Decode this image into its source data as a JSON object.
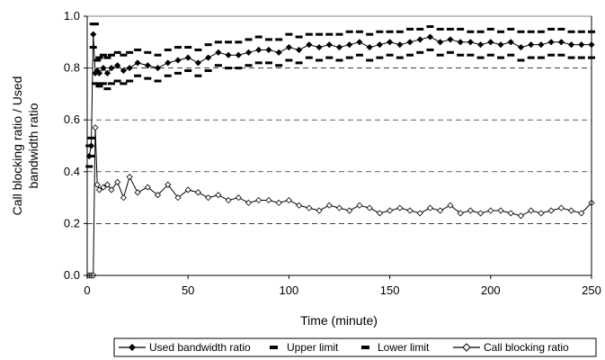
{
  "chart_data": {
    "type": "line",
    "xlabel": "Time (minute)",
    "ylabel_lines": [
      "Call blocking ratio / Used",
      "bandwidth ratio"
    ],
    "xlim": [
      0,
      250
    ],
    "ylim": [
      0,
      1.0
    ],
    "xticks": [
      0,
      50,
      100,
      150,
      200,
      250
    ],
    "yticks": [
      0.0,
      0.2,
      0.4,
      0.6,
      0.8,
      1.0
    ],
    "ytick_labels": [
      "0.0",
      "0.2",
      "0.4",
      "0.6",
      "0.8",
      "1.0"
    ],
    "grid": "horizontal dashed",
    "legend_position": "bottom",
    "x": [
      1,
      2,
      3,
      4,
      5,
      6,
      8,
      10,
      12,
      15,
      18,
      21,
      25,
      30,
      35,
      40,
      45,
      50,
      55,
      60,
      65,
      70,
      75,
      80,
      85,
      90,
      95,
      100,
      105,
      110,
      115,
      120,
      125,
      130,
      135,
      140,
      145,
      150,
      155,
      160,
      165,
      170,
      175,
      180,
      185,
      190,
      195,
      200,
      205,
      210,
      215,
      220,
      225,
      230,
      235,
      240,
      245,
      250
    ],
    "series": [
      {
        "name": "Used bandwidth ratio",
        "color": "#000000",
        "marker": "diamond-filled",
        "values": [
          0.46,
          0.5,
          0.93,
          0.78,
          0.79,
          0.78,
          0.8,
          0.78,
          0.8,
          0.81,
          0.79,
          0.8,
          0.82,
          0.81,
          0.8,
          0.82,
          0.83,
          0.84,
          0.82,
          0.84,
          0.86,
          0.85,
          0.85,
          0.86,
          0.87,
          0.87,
          0.86,
          0.88,
          0.87,
          0.89,
          0.88,
          0.89,
          0.88,
          0.89,
          0.9,
          0.88,
          0.89,
          0.9,
          0.89,
          0.9,
          0.91,
          0.92,
          0.9,
          0.91,
          0.9,
          0.9,
          0.89,
          0.9,
          0.89,
          0.9,
          0.88,
          0.89,
          0.89,
          0.9,
          0.9,
          0.89,
          0.89,
          0.89
        ]
      },
      {
        "name": "Upper limit",
        "color": "#000000",
        "marker": "dash",
        "values": [
          0.5,
          0.53,
          0.97,
          0.97,
          0.83,
          0.84,
          0.85,
          0.84,
          0.85,
          0.86,
          0.85,
          0.86,
          0.87,
          0.86,
          0.85,
          0.87,
          0.88,
          0.88,
          0.87,
          0.89,
          0.9,
          0.9,
          0.9,
          0.91,
          0.92,
          0.91,
          0.91,
          0.93,
          0.92,
          0.93,
          0.93,
          0.93,
          0.93,
          0.94,
          0.94,
          0.93,
          0.94,
          0.94,
          0.94,
          0.95,
          0.95,
          0.96,
          0.95,
          0.95,
          0.95,
          0.94,
          0.94,
          0.95,
          0.94,
          0.95,
          0.94,
          0.94,
          0.94,
          0.95,
          0.95,
          0.94,
          0.94,
          0.94
        ]
      },
      {
        "name": "Lower limit",
        "color": "#000000",
        "marker": "dash",
        "values": [
          0.42,
          0.46,
          0.88,
          0.74,
          0.74,
          0.73,
          0.74,
          0.72,
          0.74,
          0.75,
          0.74,
          0.75,
          0.77,
          0.76,
          0.75,
          0.77,
          0.78,
          0.79,
          0.77,
          0.79,
          0.81,
          0.8,
          0.8,
          0.81,
          0.82,
          0.82,
          0.81,
          0.83,
          0.82,
          0.84,
          0.83,
          0.84,
          0.83,
          0.84,
          0.85,
          0.83,
          0.84,
          0.85,
          0.84,
          0.85,
          0.86,
          0.87,
          0.85,
          0.86,
          0.85,
          0.85,
          0.84,
          0.85,
          0.84,
          0.85,
          0.83,
          0.84,
          0.84,
          0.85,
          0.85,
          0.84,
          0.84,
          0.84
        ]
      },
      {
        "name": "Call blocking ratio",
        "color": "#000000",
        "marker": "diamond-open",
        "values": [
          0.0,
          0.0,
          0.0,
          0.57,
          0.35,
          0.33,
          0.34,
          0.35,
          0.33,
          0.36,
          0.3,
          0.38,
          0.32,
          0.34,
          0.31,
          0.35,
          0.3,
          0.33,
          0.32,
          0.3,
          0.31,
          0.29,
          0.3,
          0.28,
          0.29,
          0.29,
          0.28,
          0.29,
          0.27,
          0.26,
          0.25,
          0.27,
          0.26,
          0.25,
          0.27,
          0.26,
          0.24,
          0.25,
          0.26,
          0.25,
          0.24,
          0.26,
          0.25,
          0.27,
          0.24,
          0.25,
          0.24,
          0.25,
          0.25,
          0.24,
          0.23,
          0.25,
          0.24,
          0.25,
          0.26,
          0.25,
          0.24,
          0.28
        ]
      }
    ]
  }
}
